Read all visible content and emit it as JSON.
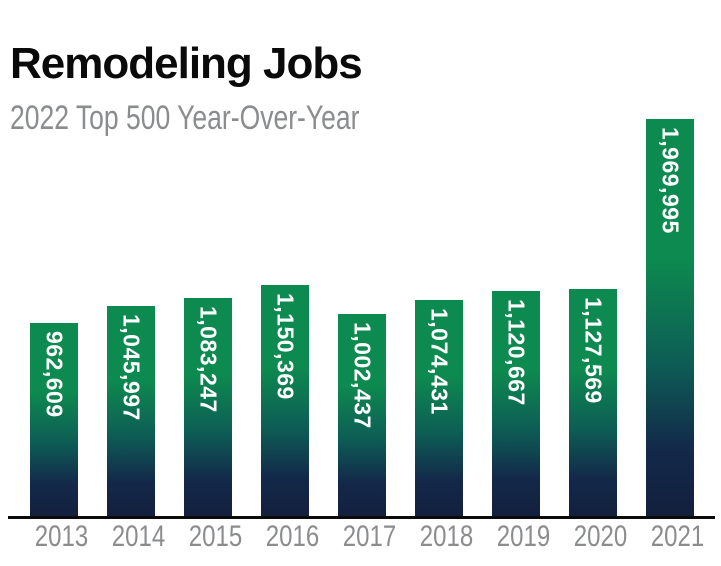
{
  "header": {
    "title": "Remodeling Jobs",
    "subtitle": "2022 Top 500 Year-Over-Year"
  },
  "chart_data": {
    "type": "bar",
    "title": "Remodeling Jobs",
    "subtitle": "2022 Top 500 Year-Over-Year",
    "categories": [
      "2013",
      "2014",
      "2015",
      "2016",
      "2017",
      "2018",
      "2019",
      "2020",
      "2021"
    ],
    "values": [
      962609,
      1045997,
      1083247,
      1150369,
      1002437,
      1074431,
      1120667,
      1127569,
      1969995
    ],
    "value_labels": [
      "962,609",
      "1,045,997",
      "1,083,247",
      "1,150,369",
      "1,002,437",
      "1,074,431",
      "1,120,667",
      "1,127,569",
      "1,969,995"
    ],
    "xlabel": "",
    "ylabel": "",
    "ylim": [
      0,
      1969995
    ],
    "grid": false,
    "legend": false,
    "value_label_position": "inside-top-rotated-90deg",
    "colors": {
      "bar_gradient_top": "#0D8A4F",
      "bar_gradient_mid": "#0D5C55",
      "bar_gradient_lower": "#13294A",
      "bar_gradient_bottom": "#131F3D",
      "value_label": "#FFFFFF",
      "axis_line": "#0B0B0B",
      "year_label": "#8A8C8E",
      "title": "#0A0A0A",
      "subtitle": "#8A8C8E"
    }
  }
}
